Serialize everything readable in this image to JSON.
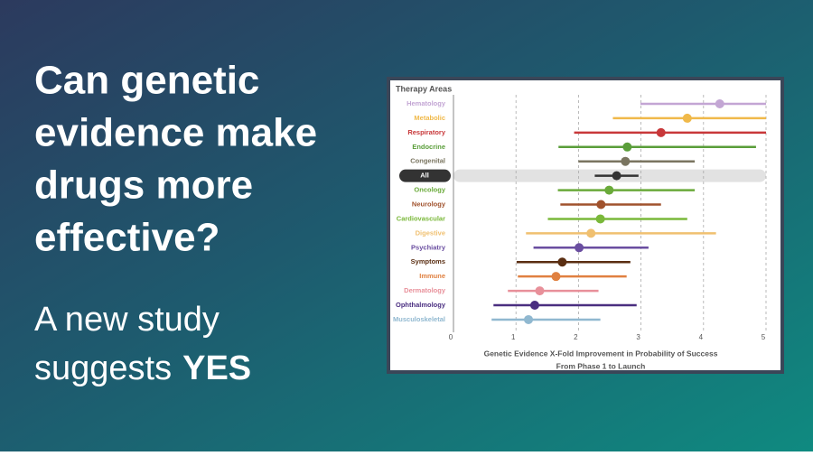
{
  "headline": [
    "Can genetic",
    "evidence make",
    "drugs more",
    "effective?"
  ],
  "subheadline": {
    "line1": "A new study",
    "line2": "suggests",
    "emphasis": "YES"
  },
  "chart_data": {
    "type": "interval",
    "legend_title": "Therapy Areas",
    "xlabel": [
      "Genetic Evidence X-Fold Improvement in Probability of Success",
      "From Phase 1 to Launch"
    ],
    "categories": [
      "Hematology",
      "Metabolic",
      "Respiratory",
      "Endocrine",
      "Congenital",
      "All",
      "Oncology",
      "Neurology",
      "Cardiovascular",
      "Digestive",
      "Psychiatry",
      "Symptoms",
      "Immune",
      "Dermatology",
      "Ophthalmology",
      "Musculoskeletal"
    ],
    "values": [
      4.26,
      3.74,
      3.32,
      2.78,
      2.75,
      2.61,
      2.49,
      2.36,
      2.35,
      2.2,
      2.01,
      1.74,
      1.64,
      1.38,
      1.3,
      1.2
    ],
    "lower": [
      2.99,
      2.55,
      1.93,
      1.68,
      2.0,
      2.26,
      1.67,
      1.71,
      1.51,
      1.16,
      1.28,
      1.01,
      1.03,
      0.87,
      0.64,
      0.61
    ],
    "upper": [
      5.0,
      5.0,
      5.0,
      4.84,
      3.86,
      2.96,
      3.86,
      3.32,
      3.74,
      4.2,
      3.12,
      2.83,
      2.77,
      2.32,
      2.93,
      2.35
    ],
    "colors": [
      "#c3a6d4",
      "#f0b94a",
      "#c8383a",
      "#5a9e3a",
      "#7a7560",
      "#333333",
      "#6aaa3a",
      "#a0522d",
      "#7ab83a",
      "#f0c070",
      "#6a4ea0",
      "#5a2e12",
      "#e08040",
      "#e8909a",
      "#4a2e80",
      "#90b8d0"
    ],
    "highlight": "All",
    "xlim": [
      0,
      5
    ],
    "xticks": [
      0,
      1,
      2,
      3,
      4,
      5
    ],
    "grid": true
  }
}
